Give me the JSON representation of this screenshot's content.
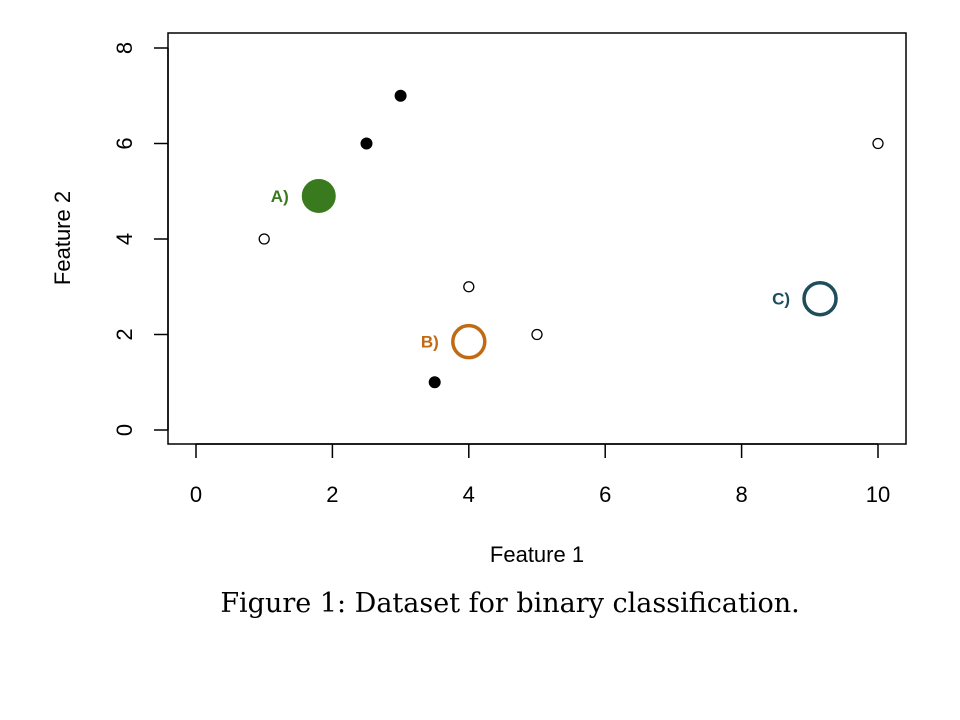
{
  "chart_data": {
    "type": "scatter",
    "title": "",
    "xlabel": "Feature 1",
    "ylabel": "Feature 2",
    "xlim": [
      -0.4,
      10.4
    ],
    "ylim": [
      -0.3,
      8.3
    ],
    "x_ticks": [
      0,
      2,
      4,
      6,
      8,
      10
    ],
    "y_ticks": [
      0,
      2,
      4,
      6,
      8
    ],
    "grid": false,
    "legend": "none",
    "series": [
      {
        "marker": "filled",
        "color": "#000000",
        "points": [
          [
            2.5,
            6
          ],
          [
            3,
            7
          ],
          [
            3.5,
            1
          ]
        ]
      },
      {
        "marker": "hollow",
        "color": "#000000",
        "points": [
          [
            1,
            4
          ],
          [
            4,
            3
          ],
          [
            5,
            2
          ],
          [
            10,
            6
          ]
        ]
      }
    ],
    "annotations": [
      {
        "label": "A)",
        "x": 1.8,
        "y": 4.9,
        "marker": "filled",
        "color": "#3a7a1e"
      },
      {
        "label": "B)",
        "x": 4.0,
        "y": 1.85,
        "marker": "hollow",
        "color": "#c06b14"
      },
      {
        "label": "C)",
        "x": 9.15,
        "y": 2.75,
        "marker": "hollow",
        "color": "#1e4d5c"
      }
    ]
  },
  "caption": "Figure 1: Dataset for binary classification."
}
